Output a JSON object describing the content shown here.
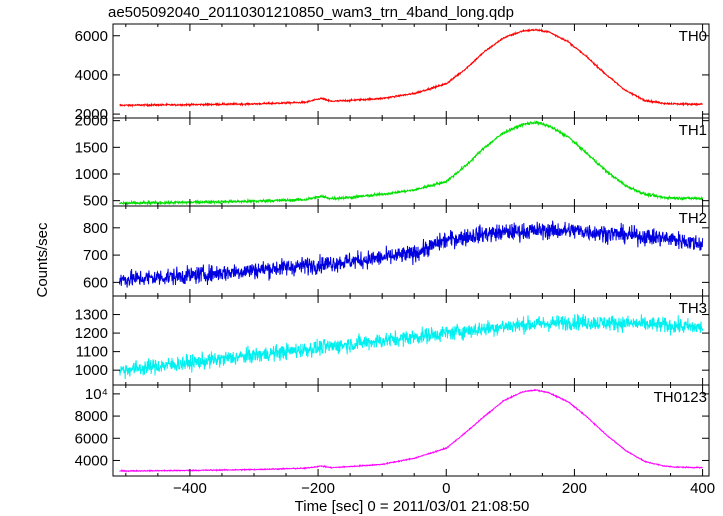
{
  "chart_data": {
    "type": "line",
    "title": "ae505092040_20110301210850_wam3_trn_4band_long.qdp",
    "xlabel": "Time [sec] 0 = 2011/03/01 21:08:50",
    "ylabel": "Counts/sec",
    "xlim": [
      -520,
      410
    ],
    "x_ticks": [
      -400,
      -200,
      0,
      200,
      400
    ],
    "panels": [
      {
        "name": "TH0",
        "color": "#ff0000",
        "ylim": [
          1800,
          6600
        ],
        "y_ticks": [
          2000,
          4000,
          6000
        ],
        "y_tick_labels": [
          "2000",
          "4000",
          "6000"
        ],
        "x": [
          -510,
          -400,
          -300,
          -220,
          -195,
          -180,
          -150,
          -100,
          -50,
          0,
          30,
          60,
          90,
          120,
          140,
          160,
          190,
          220,
          250,
          280,
          310,
          340,
          360,
          400
        ],
        "values": [
          2450,
          2480,
          2520,
          2600,
          2800,
          2650,
          2700,
          2800,
          3050,
          3550,
          4300,
          5200,
          5900,
          6250,
          6300,
          6200,
          5700,
          4900,
          4000,
          3200,
          2700,
          2550,
          2520,
          2500
        ],
        "noise": 40
      },
      {
        "name": "TH1",
        "color": "#00e000",
        "ylim": [
          400,
          2050
        ],
        "y_ticks": [
          500,
          1000,
          1500,
          2000
        ],
        "y_tick_labels": [
          "500",
          "1000",
          "1500",
          "2000"
        ],
        "x": [
          -510,
          -400,
          -300,
          -220,
          -195,
          -180,
          -150,
          -100,
          -50,
          0,
          30,
          60,
          90,
          120,
          140,
          160,
          190,
          220,
          250,
          280,
          310,
          340,
          360,
          400
        ],
        "values": [
          450,
          470,
          490,
          520,
          580,
          540,
          560,
          620,
          700,
          860,
          1150,
          1500,
          1780,
          1930,
          1970,
          1900,
          1700,
          1380,
          1050,
          780,
          620,
          560,
          550,
          540
        ],
        "noise": 25
      },
      {
        "name": "TH2",
        "color": "#0000e0",
        "ylim": [
          550,
          880
        ],
        "y_ticks": [
          600,
          700,
          800
        ],
        "y_tick_labels": [
          "600",
          "700",
          "800"
        ],
        "x": [
          -510,
          -400,
          -300,
          -200,
          -100,
          -50,
          0,
          50,
          100,
          150,
          200,
          250,
          300,
          350,
          400
        ],
        "values": [
          610,
          625,
          645,
          665,
          690,
          705,
          755,
          775,
          785,
          790,
          790,
          780,
          770,
          760,
          740
        ],
        "noise": 30
      },
      {
        "name": "TH3",
        "color": "#00f0f0",
        "ylim": [
          920,
          1400
        ],
        "y_ticks": [
          1000,
          1100,
          1200,
          1300
        ],
        "y_tick_labels": [
          "1000",
          "1100",
          "1200",
          "1300"
        ],
        "x": [
          -510,
          -400,
          -300,
          -200,
          -100,
          0,
          100,
          200,
          300,
          400
        ],
        "values": [
          1000,
          1040,
          1080,
          1120,
          1160,
          1200,
          1240,
          1260,
          1250,
          1230
        ],
        "noise": 40
      },
      {
        "name": "TH0123",
        "color": "#ff00ff",
        "ylim": [
          2600,
          10800
        ],
        "y_ticks": [
          4000,
          6000,
          8000,
          10000
        ],
        "y_tick_labels": [
          "4000",
          "6000",
          "8000",
          "10⁴"
        ],
        "x": [
          -510,
          -400,
          -300,
          -220,
          -195,
          -180,
          -150,
          -100,
          -50,
          0,
          30,
          60,
          90,
          120,
          140,
          160,
          190,
          220,
          250,
          280,
          310,
          340,
          360,
          400
        ],
        "values": [
          3050,
          3100,
          3180,
          3300,
          3500,
          3350,
          3450,
          3650,
          4200,
          5100,
          6500,
          8000,
          9400,
          10200,
          10350,
          10100,
          9300,
          7900,
          6300,
          4900,
          3900,
          3500,
          3400,
          3350
        ],
        "noise": 45
      }
    ]
  }
}
